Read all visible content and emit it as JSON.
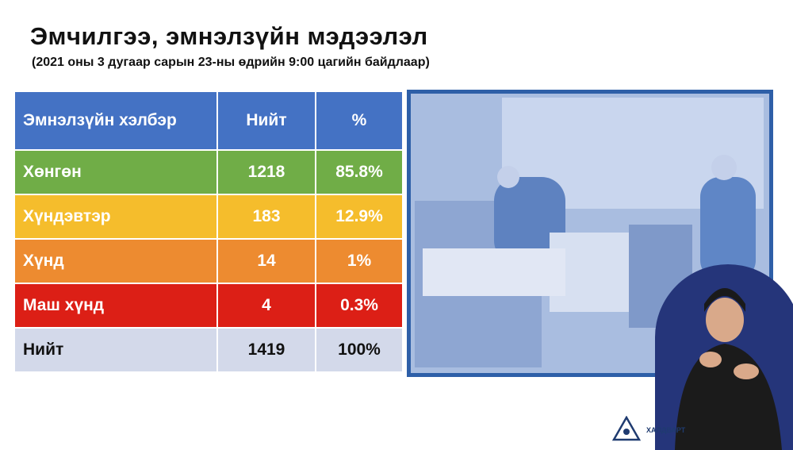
{
  "header": {
    "title": "Эмчилгээ, эмнэлзүйн мэдээлэл",
    "subtitle": "(2021 оны 3 дугаар сарын 23-ны өдрийн 9:00 цагийн байдлаар)"
  },
  "table": {
    "columns": [
      "Эмнэлзүйн хэлбэр",
      "Нийт",
      "%"
    ],
    "rows": [
      [
        "Хөнгөн",
        "1218",
        "85.8%"
      ],
      [
        "Хүндэвтэр",
        "183",
        "12.9%"
      ],
      [
        "Хүнд",
        "14",
        "1%"
      ],
      [
        "Маш хүнд",
        "4",
        "0.3%"
      ],
      [
        "Нийт",
        "1419",
        "100%"
      ]
    ]
  },
  "footer": {
    "logo_text": "ХАЛДВАРТ"
  }
}
